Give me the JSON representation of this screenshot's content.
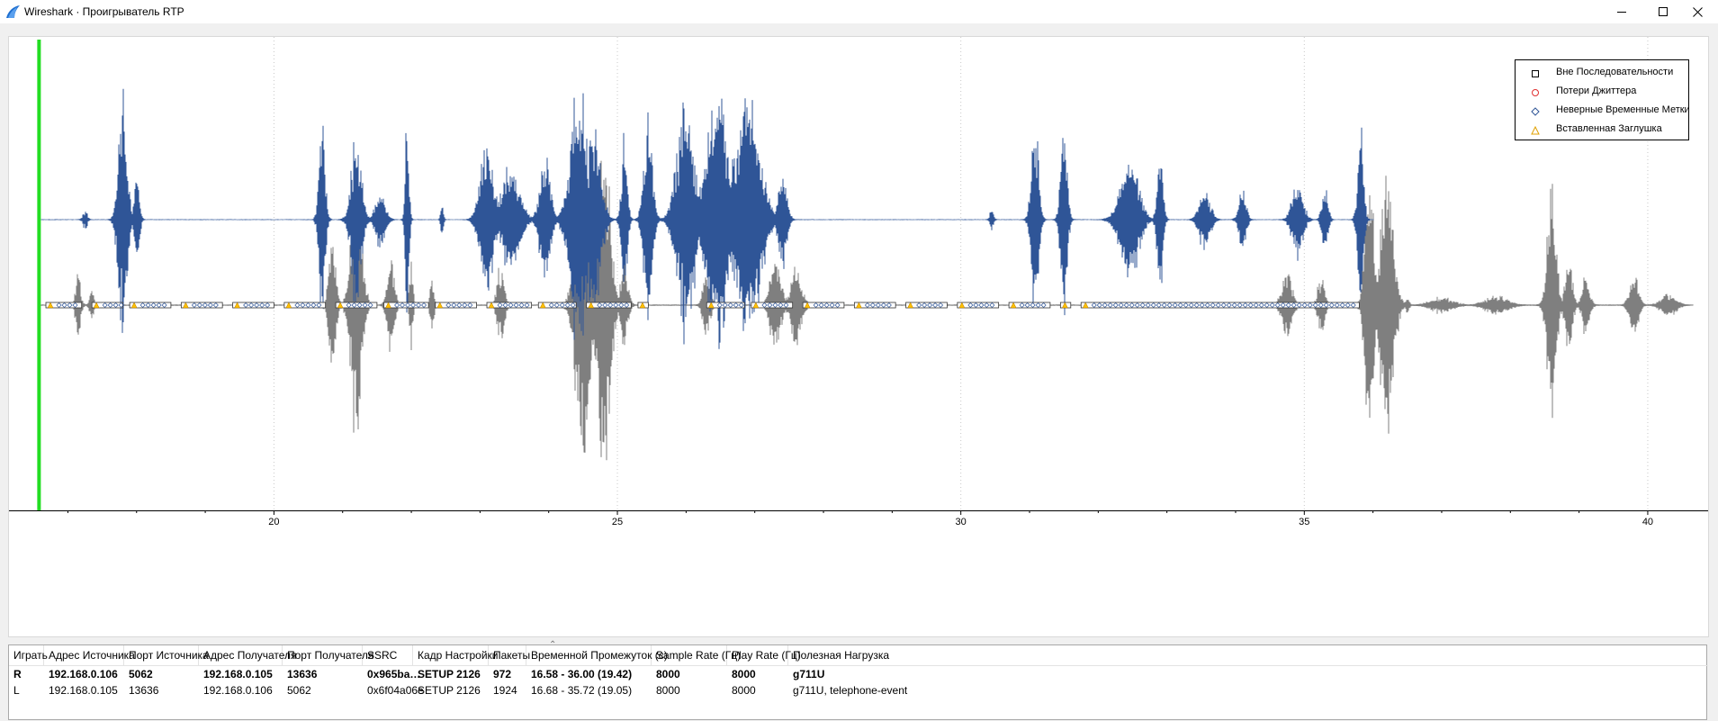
{
  "window": {
    "title": "Wireshark · Проигрыватель RTP",
    "app_icon": "wireshark-fin-icon",
    "controls": [
      "minimize-icon",
      "maximize-icon",
      "close-icon"
    ]
  },
  "plot": {
    "x_axis": {
      "min": 16.3,
      "max": 40.8,
      "major_ticks": [
        20,
        25,
        30,
        35,
        40
      ],
      "minor_step": 1,
      "vertical_grid": true,
      "grid_style": "dotted"
    },
    "cursor_color": "#22dd22",
    "cursor_time": 16.58,
    "streams": [
      {
        "channel": "R",
        "color": "#2f5597",
        "role": "waveform"
      },
      {
        "channel": "L",
        "color": "#7f7f7f",
        "role": "waveform"
      }
    ],
    "marker_colors": {
      "out_of_sequence": "#000000",
      "jitter_drops": "#e03030",
      "wrong_timestamps": "#2f5597",
      "inserted_silence": "#ffc000"
    }
  },
  "legend": {
    "position": "top-right",
    "items": [
      {
        "label": "Вне Последовательности",
        "marker": "square",
        "color": "#000000"
      },
      {
        "label": "Потери Джиттера",
        "marker": "circle",
        "color": "#e03030"
      },
      {
        "label": "Неверные Временные Метки",
        "marker": "diamond",
        "color": "#2f5597"
      },
      {
        "label": "Вставленная Заглушка",
        "marker": "triangle",
        "color": "#ffc000"
      }
    ]
  },
  "table": {
    "headers": [
      "Играть",
      "Адрес Источника",
      "Порт Источника",
      "Адрес Получателя",
      "Порт Получателя",
      "SSRC",
      "Кадр Настройки",
      "Пакеты",
      "Временной Промежуток (с)",
      "Sample Rate (Гц)",
      "Play Rate (Гц)",
      "Полезная Нагрузка"
    ],
    "sorted_column": "Кадр Настройки",
    "rows": [
      {
        "bold": true,
        "cells": [
          "R",
          "192.168.0.106",
          "5062",
          "192.168.0.105",
          "13636",
          "0x965ba…",
          "SETUP 2126",
          "972",
          "16.58 - 36.00 (19.42)",
          "8000",
          "8000",
          "g711U"
        ]
      },
      {
        "bold": false,
        "cells": [
          "L",
          "192.168.0.105",
          "13636",
          "192.168.0.106",
          "5062",
          "0x6f04a06e",
          "SETUP 2126",
          "1924",
          "16.68 - 35.72 (19.05)",
          "8000",
          "8000",
          "g711U, telephone-event"
        ]
      }
    ]
  }
}
